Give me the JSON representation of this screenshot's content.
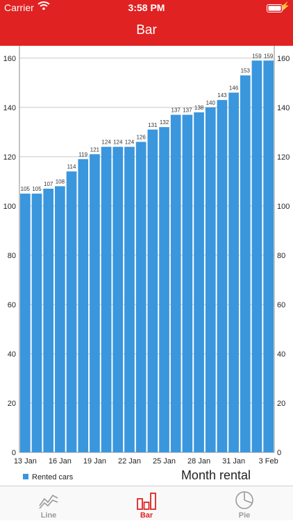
{
  "status_bar": {
    "carrier": "Carrier",
    "time": "3:58 PM",
    "wifi_icon": "wifi-icon",
    "battery_icon": "battery-icon",
    "charging_icon": "charging-bolt-icon"
  },
  "nav": {
    "title": "Bar"
  },
  "colors": {
    "accent": "#e02222",
    "bar": "#3a96dd",
    "grid": "#c8c8c8",
    "tab_inactive": "#9a9a9a"
  },
  "chart_data": {
    "type": "bar",
    "categories": [
      "13 Jan",
      "14 Jan",
      "15 Jan",
      "16 Jan",
      "17 Jan",
      "18 Jan",
      "19 Jan",
      "20 Jan",
      "21 Jan",
      "22 Jan",
      "23 Jan",
      "24 Jan",
      "25 Jan",
      "26 Jan",
      "27 Jan",
      "28 Jan",
      "29 Jan",
      "30 Jan",
      "31 Jan",
      "1 Feb",
      "2 Feb",
      "3 Feb"
    ],
    "x_tick_labels": [
      "13 Jan",
      "16 Jan",
      "19 Jan",
      "22 Jan",
      "25 Jan",
      "28 Jan",
      "31 Jan",
      "3 Feb"
    ],
    "series": [
      {
        "name": "Rented cars",
        "values": [
          105,
          105,
          107,
          108,
          114,
          119,
          121,
          124,
          124,
          124,
          126,
          131,
          132,
          137,
          137,
          138,
          140,
          143,
          146,
          153,
          159,
          159
        ]
      }
    ],
    "ylim": [
      0,
      165
    ],
    "y_ticks": [
      0,
      20,
      40,
      60,
      80,
      100,
      120,
      140,
      160
    ],
    "y_axis_left": true,
    "y_axis_right": true,
    "grid": "horizontal",
    "legend_position": "bottom-left",
    "data_labels": true
  },
  "legend": {
    "label": "Rented cars"
  },
  "description": "Month rental",
  "tabs": [
    {
      "label": "Line",
      "icon": "line-chart-icon",
      "active": false
    },
    {
      "label": "Bar",
      "icon": "bar-chart-icon",
      "active": true
    },
    {
      "label": "Pie",
      "icon": "pie-chart-icon",
      "active": false
    }
  ]
}
